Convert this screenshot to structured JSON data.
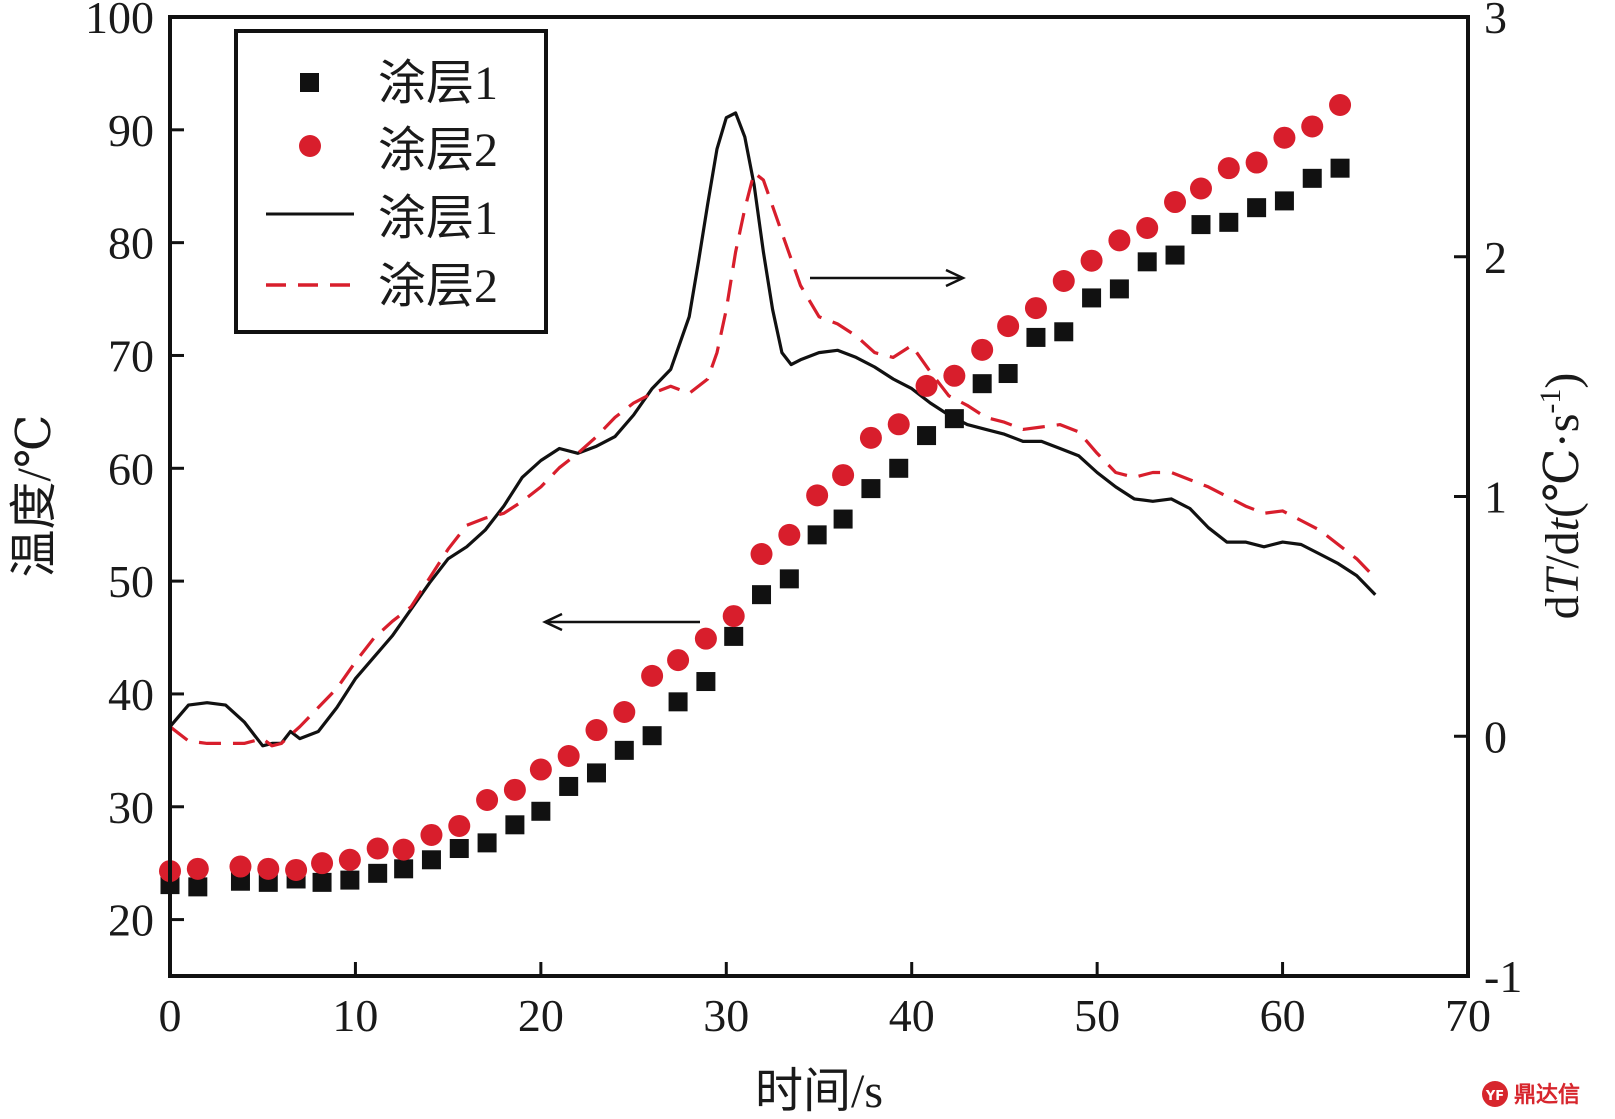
{
  "chart_data": {
    "type": "scatter+line",
    "xlabel": "时间/s",
    "ylabel_left": "温度/℃",
    "ylabel_right": {
      "prefix": "d",
      "T": "T",
      "mid": "/d",
      "t": "t",
      "open": "(℃·s",
      "sup": "-1",
      "close": ")"
    },
    "xlim": [
      0,
      70
    ],
    "ylim_left": [
      15,
      100
    ],
    "ylim_right": [
      -1,
      3
    ],
    "x_ticks": [
      "0",
      "10",
      "20",
      "30",
      "40",
      "50",
      "60",
      "70"
    ],
    "y_left_ticks": [
      "20",
      "30",
      "40",
      "50",
      "60",
      "70",
      "80",
      "90",
      "100"
    ],
    "y_right_ticks": [
      "-1",
      "0",
      "1",
      "2",
      "3"
    ],
    "legend": [
      "涂层1",
      "涂层2",
      "涂层1",
      "涂层2"
    ],
    "colors": {
      "coat1": "#111111",
      "coat2": "#d81e2c"
    },
    "series": [
      {
        "name": "涂层1",
        "kind": "scatter",
        "marker": "square",
        "axis": "left",
        "x": [
          0,
          1.5,
          3.8,
          5.3,
          6.8,
          8.2,
          9.7,
          11.2,
          12.6,
          14.1,
          15.6,
          17.1,
          18.6,
          20,
          21.5,
          23,
          24.5,
          26,
          27.4,
          28.9,
          30.4,
          31.9,
          33.4,
          34.9,
          36.3,
          37.8,
          39.3,
          40.8,
          42.3,
          43.8,
          45.2,
          46.7,
          48.2,
          49.7,
          51.2,
          52.7,
          54.2,
          55.6,
          57.1,
          58.6,
          60.1,
          61.6,
          63.1
        ],
        "y": [
          23.1,
          22.9,
          23.4,
          23.3,
          23.6,
          23.3,
          23.5,
          24.1,
          24.5,
          25.3,
          26.3,
          26.8,
          28.4,
          29.6,
          31.8,
          33,
          35,
          36.3,
          39.3,
          41.1,
          45.1,
          48.8,
          50.2,
          54.1,
          55.5,
          58.2,
          60,
          62.9,
          64.4,
          67.5,
          68.4,
          71.6,
          72.1,
          75.1,
          75.9,
          78.3,
          78.9,
          81.6,
          81.8,
          83.1,
          83.7,
          85.7,
          86.6
        ]
      },
      {
        "name": "涂层2",
        "kind": "scatter",
        "marker": "circle",
        "axis": "left",
        "x": [
          0,
          1.5,
          3.8,
          5.3,
          6.8,
          8.2,
          9.7,
          11.2,
          12.6,
          14.1,
          15.6,
          17.1,
          18.6,
          20,
          21.5,
          23,
          24.5,
          26,
          27.4,
          28.9,
          30.4,
          31.9,
          33.4,
          34.9,
          36.3,
          37.8,
          39.3,
          40.8,
          42.3,
          43.8,
          45.2,
          46.7,
          48.2,
          49.7,
          51.2,
          52.7,
          54.2,
          55.6,
          57.1,
          58.6,
          60.1,
          61.6,
          63.1
        ],
        "y": [
          24.3,
          24.5,
          24.7,
          24.5,
          24.4,
          25,
          25.3,
          26.3,
          26.2,
          27.5,
          28.3,
          30.6,
          31.5,
          33.3,
          34.5,
          36.8,
          38.4,
          41.6,
          43,
          44.9,
          46.9,
          52.4,
          54.1,
          57.6,
          59.4,
          62.7,
          63.9,
          67.3,
          68.2,
          70.5,
          72.6,
          74.2,
          76.6,
          78.4,
          80.2,
          81.3,
          83.6,
          84.8,
          86.6,
          87.1,
          89.3,
          90.3,
          92.2
        ]
      },
      {
        "name": "涂层1",
        "kind": "line",
        "dash": "solid",
        "axis": "right",
        "x": [
          0,
          1,
          2,
          3,
          4,
          5,
          5.5,
          6,
          6.5,
          7,
          8,
          9,
          10,
          11,
          12,
          13,
          14,
          15,
          16,
          17,
          18,
          19,
          20,
          21,
          22,
          23,
          24,
          25,
          26,
          27,
          28,
          28.5,
          29,
          29.5,
          30,
          30.5,
          31,
          31.5,
          32,
          32.5,
          33,
          33.5,
          34,
          35,
          36,
          37,
          38,
          39,
          40,
          41,
          42,
          43,
          44,
          45,
          46,
          47,
          48,
          49,
          50,
          51,
          52,
          53,
          54,
          55,
          56,
          57,
          58,
          59,
          60,
          61,
          62,
          63,
          64,
          65
        ],
        "y": [
          0.04,
          0.13,
          0.14,
          0.13,
          0.06,
          -0.04,
          -0.03,
          -0.03,
          0.02,
          -0.01,
          0.02,
          0.12,
          0.24,
          0.33,
          0.42,
          0.53,
          0.64,
          0.74,
          0.79,
          0.86,
          0.96,
          1.08,
          1.15,
          1.2,
          1.18,
          1.21,
          1.25,
          1.34,
          1.45,
          1.53,
          1.75,
          1.98,
          2.22,
          2.45,
          2.58,
          2.6,
          2.5,
          2.3,
          2.02,
          1.78,
          1.6,
          1.55,
          1.57,
          1.6,
          1.61,
          1.58,
          1.54,
          1.49,
          1.45,
          1.39,
          1.34,
          1.3,
          1.28,
          1.26,
          1.23,
          1.23,
          1.2,
          1.17,
          1.1,
          1.04,
          0.99,
          0.98,
          0.99,
          0.95,
          0.87,
          0.81,
          0.81,
          0.79,
          0.81,
          0.8,
          0.76,
          0.72,
          0.67,
          0.59
        ]
      },
      {
        "name": "涂层2",
        "kind": "line",
        "dash": "dashed",
        "axis": "right",
        "x": [
          0,
          1,
          2,
          3,
          4,
          5,
          5.5,
          6,
          7,
          8,
          9,
          10,
          11,
          12,
          13,
          14,
          15,
          16,
          17,
          18,
          19,
          20,
          21,
          22,
          23,
          24,
          25,
          26,
          27,
          28,
          29,
          29.5,
          30,
          30.5,
          31,
          31.5,
          32,
          33,
          34,
          35,
          36,
          37,
          38,
          39,
          40,
          41,
          42,
          43,
          44,
          45,
          46,
          47,
          48,
          49,
          50,
          51,
          52,
          53,
          54,
          55,
          56,
          57,
          58,
          59,
          60,
          61,
          62,
          63,
          64,
          65
        ],
        "y": [
          0.04,
          -0.02,
          -0.03,
          -0.03,
          -0.03,
          -0.01,
          -0.04,
          -0.03,
          0.04,
          0.12,
          0.2,
          0.31,
          0.41,
          0.48,
          0.54,
          0.66,
          0.78,
          0.88,
          0.91,
          0.93,
          0.98,
          1.04,
          1.12,
          1.18,
          1.25,
          1.33,
          1.39,
          1.43,
          1.46,
          1.43,
          1.49,
          1.6,
          1.78,
          2.02,
          2.2,
          2.35,
          2.32,
          2.1,
          1.88,
          1.75,
          1.72,
          1.67,
          1.6,
          1.58,
          1.63,
          1.52,
          1.42,
          1.38,
          1.33,
          1.31,
          1.28,
          1.29,
          1.3,
          1.27,
          1.18,
          1.1,
          1.08,
          1.1,
          1.1,
          1.07,
          1.04,
          1.0,
          0.96,
          0.93,
          0.94,
          0.9,
          0.86,
          0.8,
          0.74,
          0.66
        ]
      }
    ]
  },
  "watermark": "鼎达信",
  "watermark_logo": "YF"
}
